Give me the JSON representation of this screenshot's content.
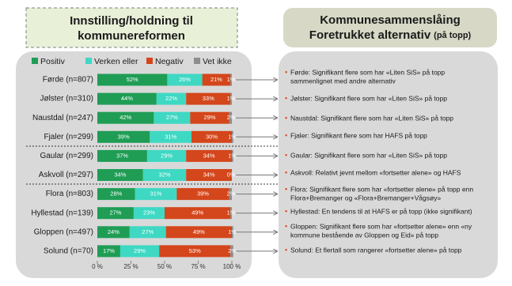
{
  "left_title": [
    "Innstilling/holdning  til",
    "kommunereformen"
  ],
  "right_title": {
    "line1": "Kommunesammenslåing",
    "line2": "Foretrukket alternativ",
    "suffix": "(på topp)"
  },
  "notes": [
    [
      "Førde: Signifikant flere som har «Liten SiS» på topp",
      "sammenlignet med andre alternativ"
    ],
    [
      "Jølster: Signifikant flere som har «Liten SiS» på topp"
    ],
    [
      "Naustdal: Signifikant flere som har «Liten SiS» på topp"
    ],
    [
      "Fjaler: Signifikant flere som har HAFS på topp"
    ],
    [
      "Gaular: Signifikant flere som har «Liten SiS» på topp"
    ],
    [
      "Askvoll: Relativt jevnt mellom «fortsetter alene» og HAFS"
    ],
    [
      "Flora: Signifikant flere som har «fortsetter alene» på topp enn",
      "Flora+Bremanger og  «Flora+Bremanger+Vågsøy»"
    ],
    [
      "Hyllestad: En tendens til at HAFS er på topp (ikke signifikant)"
    ],
    [
      "Gloppen: Signifikant flere som har «fortsetter alene» enn «ny",
      "kommune bestående av Gloppen og Eid» på topp"
    ],
    [
      "Solund:  Et flertall som rangerer «fortsetter alene» på topp"
    ]
  ],
  "chart_data": {
    "type": "barh",
    "categories": [
      "Førde (n=807)",
      "Jølster (n=310)",
      "Naustdal (n=247)",
      "Fjaler (n=299)",
      "Gaular (n=299)",
      "Askvoll (n=297)",
      "Flora (n=803)",
      "Hyllestad (n=139)",
      "Gloppen (n=497)",
      "Solund (n=70)"
    ],
    "series": [
      {
        "name": "Positiv",
        "color": "#1f9d55",
        "values": [
          52,
          44,
          42,
          39,
          37,
          34,
          28,
          27,
          24,
          17
        ],
        "value_labels": [
          "52%",
          "44%",
          "42%",
          "39%",
          "37%",
          "34%",
          "28%",
          "27%",
          "24%",
          "17%"
        ]
      },
      {
        "name": "Verken eller",
        "color": "#3ed8c3",
        "values": [
          26,
          22,
          27,
          31,
          29,
          32,
          31,
          23,
          27,
          29
        ],
        "value_labels": [
          "26%",
          "22%",
          "27%",
          "31%",
          "29%",
          "32%",
          "31%",
          "23%",
          "27%",
          "29%"
        ]
      },
      {
        "name": "Negativ",
        "color": "#d4461b",
        "values": [
          21,
          33,
          29,
          30,
          34,
          34,
          39,
          49,
          49,
          53
        ],
        "value_labels": [
          "21%",
          "33%",
          "29%",
          "30%",
          "34%",
          "34%",
          "39%",
          "49%",
          "49%",
          "53%"
        ]
      },
      {
        "name": "Vet ikke",
        "color": "#8c8c8c",
        "values": [
          1,
          1,
          2,
          1,
          1,
          0,
          2,
          1,
          1,
          2
        ],
        "value_labels": [
          "1%",
          "1%",
          "2%",
          "1%",
          "1%",
          "0%",
          "2%",
          "1%",
          "1%",
          "2%"
        ]
      }
    ],
    "xlim": [
      0,
      100
    ],
    "xticks": [
      {
        "value": 0,
        "label": "0 %"
      },
      {
        "value": 25,
        "label": "25 %"
      },
      {
        "value": 50,
        "label": "50 %"
      },
      {
        "value": 75,
        "label": "75 %"
      },
      {
        "value": 100,
        "label": "100 %"
      }
    ]
  }
}
